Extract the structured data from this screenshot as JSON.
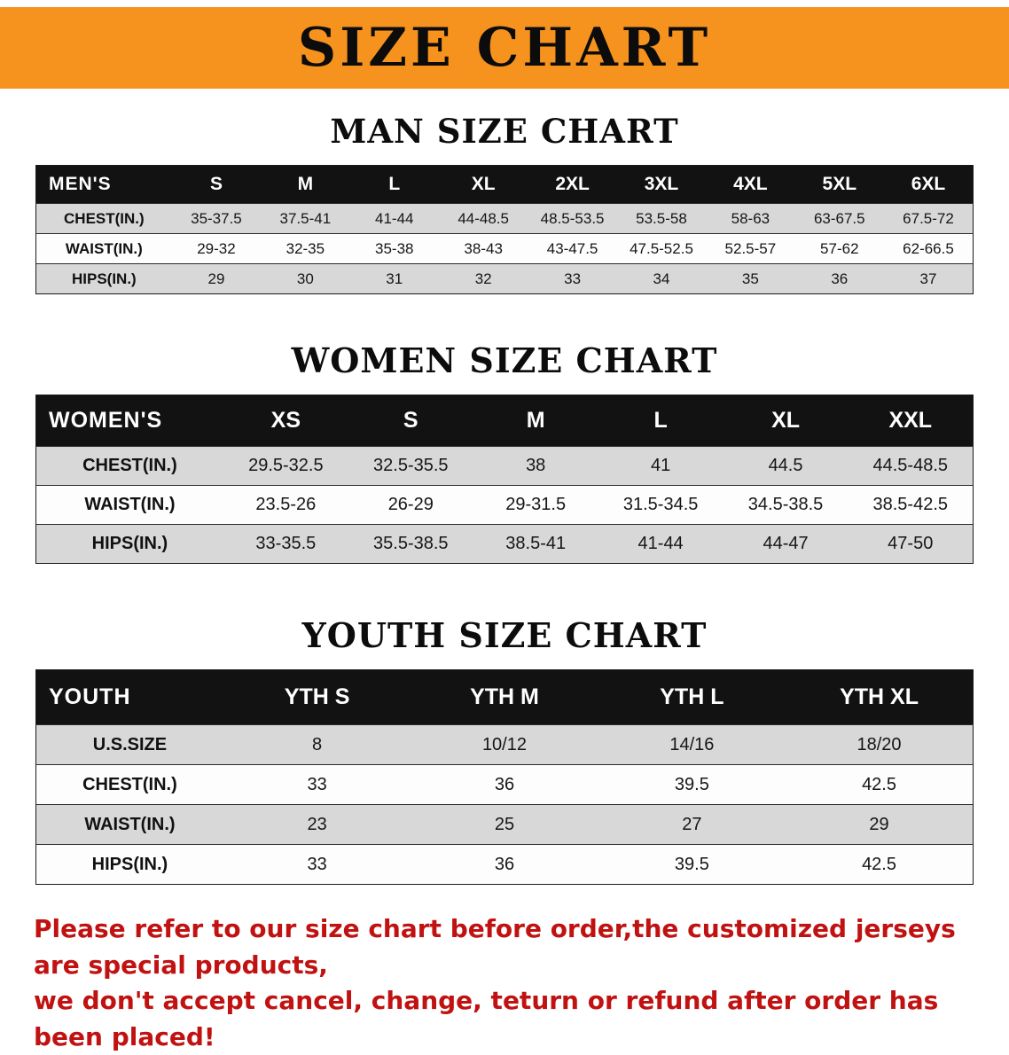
{
  "banner": {
    "title": "SIZE CHART"
  },
  "sections": [
    {
      "title": "MAN SIZE CHART",
      "table": {
        "header": [
          "MEN'S",
          "S",
          "M",
          "L",
          "XL",
          "2XL",
          "3XL",
          "4XL",
          "5XL",
          "6XL"
        ],
        "rows": [
          {
            "label": "CHEST(IN.)",
            "values": [
              "35-37.5",
              "37.5-41",
              "41-44",
              "44-48.5",
              "48.5-53.5",
              "53.5-58",
              "58-63",
              "63-67.5",
              "67.5-72"
            ]
          },
          {
            "label": "WAIST(IN.)",
            "values": [
              "29-32",
              "32-35",
              "35-38",
              "38-43",
              "43-47.5",
              "47.5-52.5",
              "52.5-57",
              "57-62",
              "62-66.5"
            ]
          },
          {
            "label": "HIPS(IN.)",
            "values": [
              "29",
              "30",
              "31",
              "32",
              "33",
              "34",
              "35",
              "36",
              "37"
            ]
          }
        ]
      }
    },
    {
      "title": "WOMEN SIZE CHART",
      "table": {
        "header": [
          "WOMEN'S",
          "XS",
          "S",
          "M",
          "L",
          "XL",
          "XXL"
        ],
        "rows": [
          {
            "label": "CHEST(IN.)",
            "values": [
              "29.5-32.5",
              "32.5-35.5",
              "38",
              "41",
              "44.5",
              "44.5-48.5"
            ]
          },
          {
            "label": "WAIST(IN.)",
            "values": [
              "23.5-26",
              "26-29",
              "29-31.5",
              "31.5-34.5",
              "34.5-38.5",
              "38.5-42.5"
            ]
          },
          {
            "label": "HIPS(IN.)",
            "values": [
              "33-35.5",
              "35.5-38.5",
              "38.5-41",
              "41-44",
              "44-47",
              "47-50"
            ]
          }
        ]
      }
    },
    {
      "title": "YOUTH SIZE CHART",
      "table": {
        "header": [
          "YOUTH",
          "YTH S",
          "YTH M",
          "YTH L",
          "YTH XL"
        ],
        "rows": [
          {
            "label": "U.S.SIZE",
            "values": [
              "8",
              "10/12",
              "14/16",
              "18/20"
            ]
          },
          {
            "label": "CHEST(IN.)",
            "values": [
              "33",
              "36",
              "39.5",
              "42.5"
            ]
          },
          {
            "label": "WAIST(IN.)",
            "values": [
              "23",
              "25",
              "27",
              "29"
            ]
          },
          {
            "label": "HIPS(IN.)",
            "values": [
              "33",
              "36",
              "39.5",
              "42.5"
            ]
          }
        ]
      }
    }
  ],
  "footer": {
    "lines": [
      "Please refer to our size chart before order,the customized jerseys are special products,",
      "we don't accept cancel, change, teturn or refund after order has been placed!"
    ]
  },
  "colors": {
    "banner_bg": "#f6921e",
    "table_header_bg": "#121212",
    "shaded_row_bg": "#d8d8d8",
    "footer_text": "#c11212"
  }
}
